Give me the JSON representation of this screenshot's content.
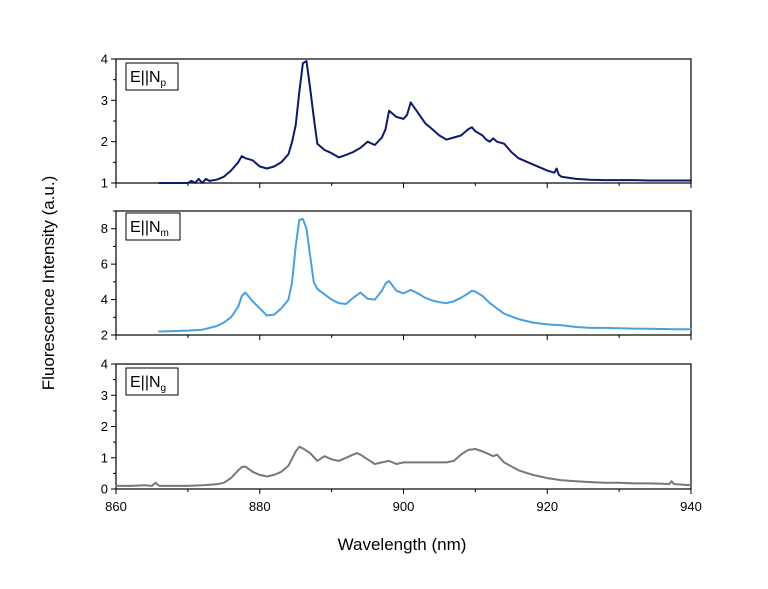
{
  "chart_data": {
    "type": "line",
    "title": "",
    "xlabel": "Wavelength (nm)",
    "ylabel": "Fluorescence Intensity (a.u.)",
    "xlim": [
      860,
      940
    ],
    "xticks": [
      860,
      880,
      900,
      920,
      940
    ],
    "panels": [
      {
        "label_main": "E||N",
        "label_sub": "p",
        "color": "#0d1a6b",
        "ylim": [
          1,
          4
        ],
        "yticks": [
          1,
          2,
          3,
          4
        ],
        "series": {
          "name": "E||Np",
          "x": [
            866,
            868,
            869,
            870,
            870.5,
            871,
            871.5,
            872,
            872.5,
            873,
            874,
            875,
            876,
            877,
            877.5,
            878,
            879,
            880,
            881,
            882,
            883,
            884,
            884.5,
            885,
            885.5,
            886,
            886.5,
            887,
            887.5,
            888,
            889,
            890,
            891,
            892,
            893,
            894,
            895,
            896,
            897,
            897.5,
            898,
            899,
            900,
            900.5,
            901,
            902,
            903,
            904,
            905,
            906,
            907,
            908,
            909,
            909.5,
            910,
            911,
            911.5,
            912,
            912.5,
            913,
            914,
            915,
            916,
            918,
            920,
            921,
            921.3,
            921.6,
            922,
            924,
            926,
            928,
            930,
            932,
            934,
            936,
            938,
            940
          ],
          "y": [
            1.0,
            1.0,
            1.0,
            1.0,
            1.05,
            1.0,
            1.1,
            1.0,
            1.1,
            1.05,
            1.08,
            1.15,
            1.3,
            1.5,
            1.65,
            1.6,
            1.55,
            1.4,
            1.35,
            1.4,
            1.5,
            1.7,
            2.0,
            2.4,
            3.2,
            3.9,
            3.95,
            3.3,
            2.6,
            1.95,
            1.8,
            1.72,
            1.62,
            1.68,
            1.75,
            1.85,
            2.0,
            1.92,
            2.1,
            2.3,
            2.75,
            2.6,
            2.55,
            2.65,
            2.95,
            2.7,
            2.45,
            2.3,
            2.15,
            2.05,
            2.1,
            2.15,
            2.3,
            2.35,
            2.25,
            2.15,
            2.05,
            2.0,
            2.08,
            2.0,
            1.95,
            1.75,
            1.6,
            1.45,
            1.3,
            1.25,
            1.35,
            1.2,
            1.15,
            1.1,
            1.08,
            1.07,
            1.07,
            1.07,
            1.06,
            1.06,
            1.06,
            1.06
          ]
        }
      },
      {
        "label_main": "E||N",
        "label_sub": "m",
        "color": "#4a9fe0",
        "ylim": [
          2,
          9
        ],
        "yticks": [
          2,
          4,
          6,
          8
        ],
        "series": {
          "name": "E||Nm",
          "x": [
            866,
            868,
            870,
            872,
            874,
            875,
            876,
            877,
            877.5,
            878,
            879,
            880,
            881,
            882,
            883,
            884,
            884.5,
            885,
            885.5,
            886,
            886.5,
            887,
            887.5,
            888,
            889,
            890,
            891,
            892,
            893,
            894,
            895,
            896,
            897,
            897.5,
            898,
            899,
            900,
            900.5,
            901,
            902,
            903,
            904,
            905,
            906,
            907,
            908,
            909,
            909.5,
            910,
            911,
            912,
            913,
            914,
            916,
            918,
            920,
            922,
            924,
            926,
            928,
            930,
            932,
            934,
            936,
            938,
            940
          ],
          "y": [
            2.2,
            2.22,
            2.25,
            2.3,
            2.5,
            2.7,
            3.0,
            3.6,
            4.2,
            4.4,
            3.9,
            3.5,
            3.1,
            3.15,
            3.5,
            4.0,
            5.0,
            7.0,
            8.5,
            8.55,
            8.0,
            6.5,
            5.0,
            4.6,
            4.3,
            4.0,
            3.8,
            3.75,
            4.1,
            4.4,
            4.05,
            4.0,
            4.5,
            4.9,
            5.05,
            4.5,
            4.35,
            4.45,
            4.55,
            4.35,
            4.1,
            3.95,
            3.85,
            3.8,
            3.9,
            4.1,
            4.35,
            4.5,
            4.45,
            4.2,
            3.8,
            3.5,
            3.2,
            2.9,
            2.7,
            2.6,
            2.55,
            2.45,
            2.4,
            2.4,
            2.38,
            2.36,
            2.35,
            2.34,
            2.33,
            2.33
          ]
        }
      },
      {
        "label_main": "E||N",
        "label_sub": "g",
        "color": "#787878",
        "ylim": [
          0,
          4
        ],
        "yticks": [
          0,
          1,
          2,
          3,
          4
        ],
        "series": {
          "name": "E||Ng",
          "x": [
            860,
            862,
            864,
            865,
            865.5,
            866,
            868,
            870,
            872,
            874,
            875,
            876,
            877,
            877.5,
            878,
            879,
            880,
            881,
            882,
            883,
            884,
            885,
            885.5,
            886,
            887,
            888,
            889,
            890,
            891,
            892,
            893,
            893.5,
            894,
            895,
            896,
            897,
            898,
            899,
            900,
            902,
            904,
            906,
            907,
            908,
            909,
            910,
            911,
            912,
            912.5,
            913,
            914,
            916,
            918,
            920,
            922,
            924,
            926,
            928,
            930,
            932,
            934,
            936,
            937,
            937.3,
            937.6,
            938,
            940
          ],
          "y": [
            0.1,
            0.1,
            0.12,
            0.1,
            0.2,
            0.1,
            0.1,
            0.1,
            0.12,
            0.15,
            0.2,
            0.35,
            0.6,
            0.7,
            0.72,
            0.55,
            0.45,
            0.4,
            0.45,
            0.55,
            0.75,
            1.2,
            1.35,
            1.3,
            1.15,
            0.9,
            1.05,
            0.95,
            0.9,
            1.0,
            1.1,
            1.15,
            1.1,
            0.95,
            0.8,
            0.85,
            0.9,
            0.8,
            0.85,
            0.85,
            0.85,
            0.85,
            0.9,
            1.1,
            1.25,
            1.28,
            1.2,
            1.1,
            1.05,
            1.1,
            0.85,
            0.6,
            0.45,
            0.35,
            0.28,
            0.25,
            0.22,
            0.2,
            0.2,
            0.18,
            0.18,
            0.17,
            0.16,
            0.25,
            0.16,
            0.15,
            0.12
          ]
        }
      }
    ]
  }
}
